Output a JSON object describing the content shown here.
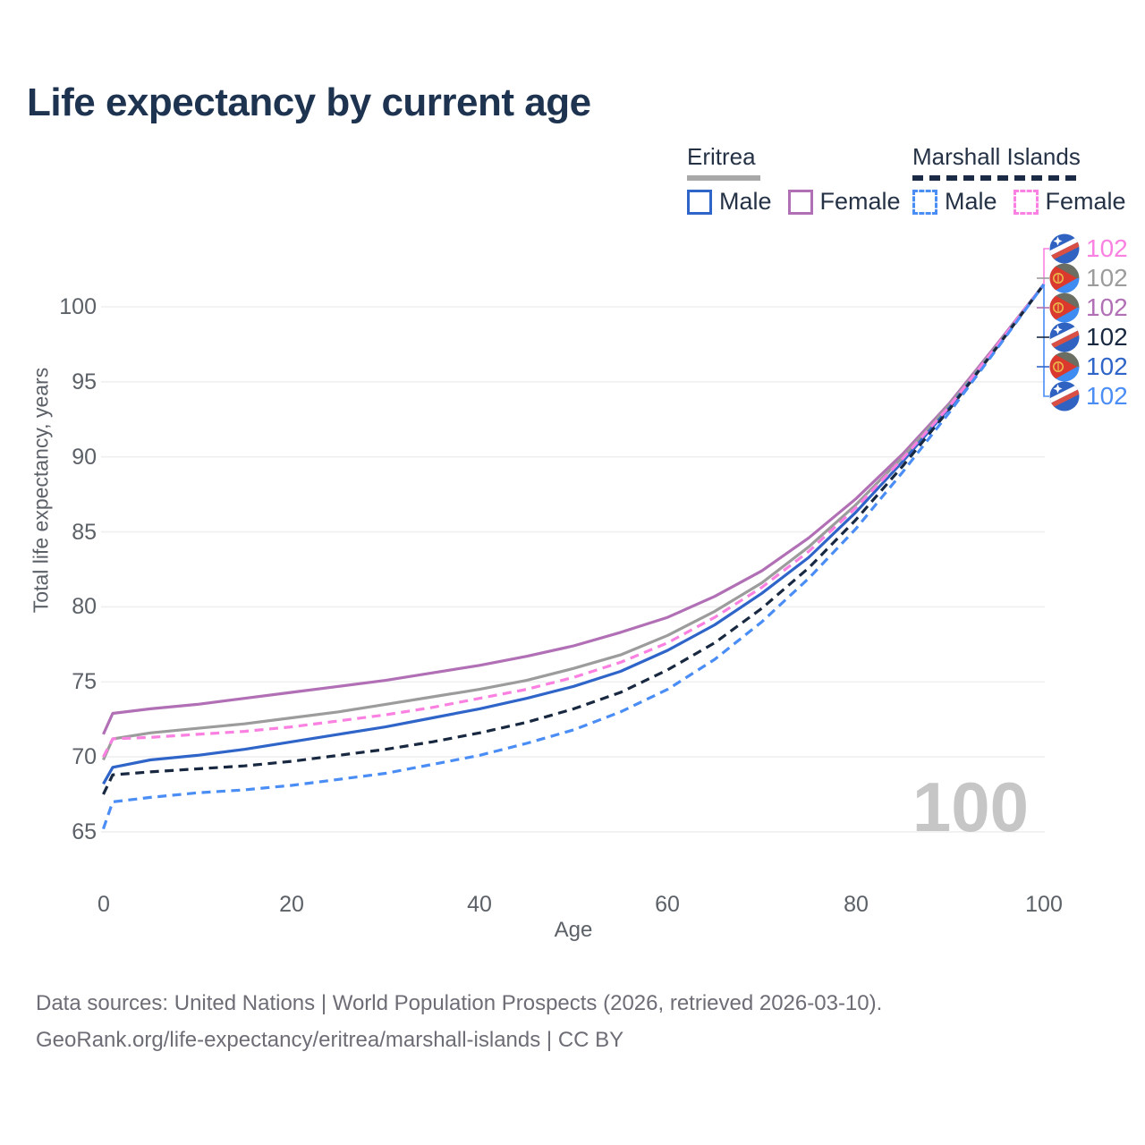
{
  "footer": {
    "line1": "Data sources: United Nations | World Population Prospects (2026, retrieved 2026-03-10).",
    "line2": "GeoRank.org/life-expectancy/eritrea/marshall-islands | CC BY"
  },
  "legend": {
    "groups": [
      {
        "country": "Eritrea",
        "style": "solid",
        "underline_color": "#a8a8a8",
        "items": [
          {
            "label": "Male",
            "color": "#2f65c8",
            "dashed": false
          },
          {
            "label": "Female",
            "color": "#b16fb5",
            "dashed": false
          }
        ]
      },
      {
        "country": "Marshall Islands",
        "style": "dashed",
        "underline_color": "#1b2b45",
        "items": [
          {
            "label": "Male",
            "color": "#4a8df5",
            "dashed": true
          },
          {
            "label": "Female",
            "color": "#fa81e1",
            "dashed": true
          }
        ]
      }
    ]
  },
  "palette": {
    "title_text": "#1d3350",
    "axis_text": "#5c6168",
    "footer_text": "#6d6d76",
    "watermark_text": "#c6c6c6",
    "grid": "#efefef"
  },
  "chart_data": {
    "type": "line",
    "title": "Life expectancy by current age",
    "xlabel": "Age",
    "ylabel": "Total life expectancy, years",
    "watermark": "100",
    "x_ticks": [
      0,
      20,
      40,
      60,
      80,
      100
    ],
    "y_ticks": [
      65,
      70,
      75,
      80,
      85,
      90,
      95,
      100
    ],
    "xlim": [
      0,
      100
    ],
    "ylim": [
      63.5,
      102.5
    ],
    "grid": "horizontal-only",
    "legend_position": "top-right",
    "ages": [
      0,
      1,
      5,
      10,
      15,
      20,
      25,
      30,
      35,
      40,
      45,
      50,
      55,
      60,
      65,
      70,
      75,
      80,
      85,
      90,
      95,
      100
    ],
    "draw_order": [
      2,
      1,
      4,
      3,
      0,
      5
    ],
    "series": [
      {
        "id": "mh-female",
        "country": "Marshall Islands",
        "sex": "Female",
        "flag": "mh",
        "dashed": true,
        "color": "#fa81e1",
        "end_label": "102",
        "values": [
          70.0,
          71.2,
          71.3,
          71.5,
          71.7,
          72.0,
          72.4,
          72.8,
          73.3,
          73.9,
          74.5,
          75.3,
          76.3,
          77.6,
          79.3,
          81.3,
          83.7,
          86.6,
          89.9,
          93.4,
          97.4,
          101.5
        ]
      },
      {
        "id": "eritrea-both",
        "country": "Eritrea",
        "sex": "Both sexes",
        "flag": "er",
        "dashed": false,
        "color": "#9c9c9c",
        "end_label": "102",
        "values": [
          69.8,
          71.2,
          71.6,
          71.9,
          72.2,
          72.6,
          73.0,
          73.5,
          74.0,
          74.5,
          75.1,
          75.9,
          76.8,
          78.1,
          79.7,
          81.6,
          84.0,
          86.8,
          90.0,
          93.5,
          97.4,
          101.5
        ]
      },
      {
        "id": "eritrea-female",
        "country": "Eritrea",
        "sex": "Female",
        "flag": "er",
        "dashed": false,
        "color": "#b16fb5",
        "end_label": "102",
        "values": [
          71.5,
          72.9,
          73.2,
          73.5,
          73.9,
          74.3,
          74.7,
          75.1,
          75.6,
          76.1,
          76.7,
          77.4,
          78.3,
          79.3,
          80.7,
          82.4,
          84.6,
          87.2,
          90.2,
          93.6,
          97.5,
          101.5
        ]
      },
      {
        "id": "mh-both",
        "country": "Marshall Islands",
        "sex": "Both sexes",
        "flag": "mh",
        "dashed": true,
        "color": "#172840",
        "end_label": "102",
        "values": [
          67.5,
          68.8,
          69.0,
          69.2,
          69.4,
          69.7,
          70.1,
          70.5,
          71.0,
          71.6,
          72.3,
          73.2,
          74.3,
          75.8,
          77.6,
          79.9,
          82.6,
          85.8,
          89.4,
          93.2,
          97.3,
          101.5
        ]
      },
      {
        "id": "eritrea-male",
        "country": "Eritrea",
        "sex": "Male",
        "flag": "er",
        "dashed": false,
        "color": "#2f65c8",
        "end_label": "102",
        "values": [
          68.2,
          69.3,
          69.8,
          70.1,
          70.5,
          71.0,
          71.5,
          72.0,
          72.6,
          73.2,
          73.9,
          74.7,
          75.7,
          77.1,
          78.8,
          80.9,
          83.3,
          86.3,
          89.7,
          93.3,
          97.3,
          101.5
        ]
      },
      {
        "id": "mh-male",
        "country": "Marshall Islands",
        "sex": "Male",
        "flag": "mh",
        "dashed": true,
        "color": "#4a8df5",
        "end_label": "102",
        "values": [
          65.2,
          67.0,
          67.3,
          67.6,
          67.8,
          68.1,
          68.5,
          68.9,
          69.5,
          70.1,
          70.9,
          71.8,
          73.0,
          74.5,
          76.5,
          79.0,
          81.9,
          85.2,
          89.0,
          93.0,
          97.2,
          101.5
        ]
      }
    ]
  }
}
